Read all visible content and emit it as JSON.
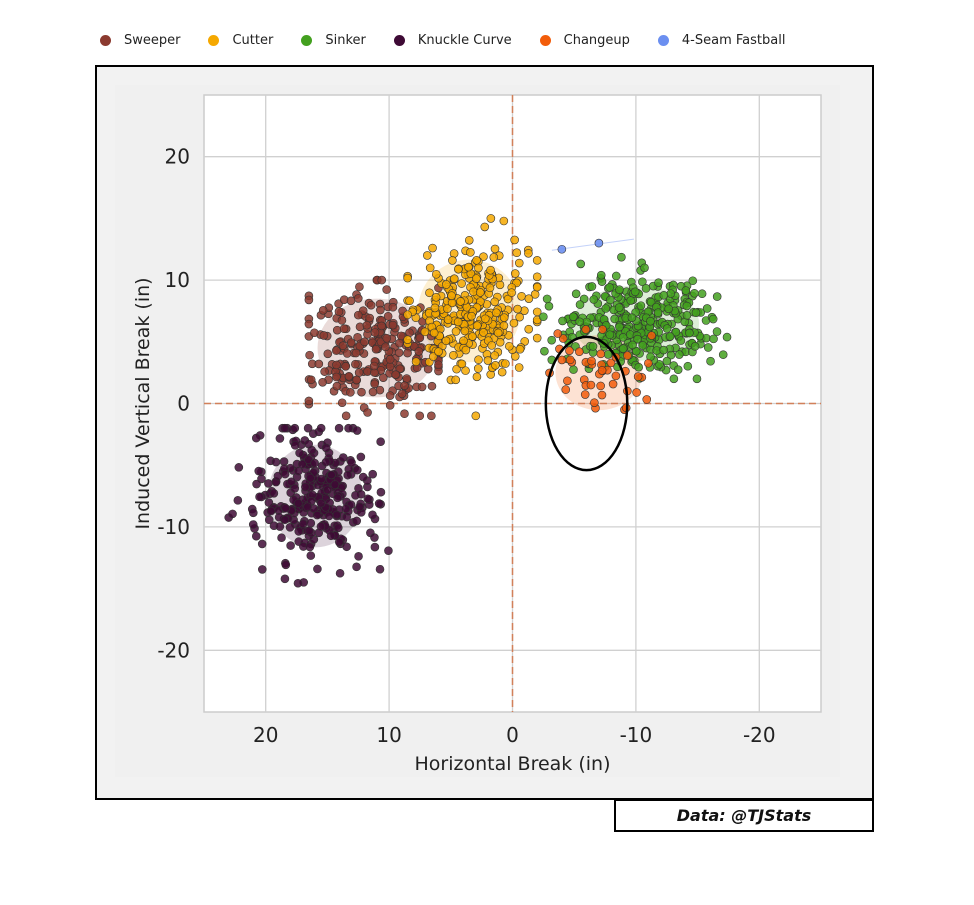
{
  "legend": [
    {
      "label": "Sweeper",
      "color": "#8b3a2f"
    },
    {
      "label": "Cutter",
      "color": "#f5a800"
    },
    {
      "label": "Sinker",
      "color": "#43a01f"
    },
    {
      "label": "Knuckle Curve",
      "color": "#3e0a35"
    },
    {
      "label": "Changeup",
      "color": "#f25c0a"
    },
    {
      "label": "4-Seam Fastball",
      "color": "#6b8ff0"
    }
  ],
  "credit": "Data: @TJStats",
  "chart_data": {
    "type": "scatter",
    "xlabel": "Horizontal Break (in)",
    "ylabel": "Induced Vertical Break (in)",
    "xlim": [
      25,
      -25
    ],
    "ylim": [
      -25,
      25
    ],
    "xticks": [
      20,
      10,
      0,
      -10,
      -20
    ],
    "yticks": [
      -20,
      -10,
      0,
      10,
      20
    ],
    "grid": true,
    "zero_lines": true,
    "series": [
      {
        "name": "Sweeper",
        "color": "#8b3a2f",
        "center": [
          11,
          4.5
        ],
        "spread": [
          3.0,
          2.5
        ],
        "range_x": [
          16.5,
          6
        ],
        "range_y": [
          -1,
          10
        ],
        "n": 260
      },
      {
        "name": "Cutter",
        "color": "#f5a800",
        "center": [
          3.5,
          7.5
        ],
        "spread": [
          2.6,
          2.6
        ],
        "range_x": [
          8.5,
          -2
        ],
        "range_y": [
          -1,
          15
        ],
        "n": 320
      },
      {
        "name": "Sinker",
        "color": "#43a01f",
        "center": [
          -10,
          6.5
        ],
        "spread": [
          3.2,
          1.9
        ],
        "range_x": [
          -2.5,
          -20
        ],
        "range_y": [
          2,
          14
        ],
        "n": 340
      },
      {
        "name": "Knuckle Curve",
        "color": "#3e0a35",
        "center": [
          16,
          -7.5
        ],
        "spread": [
          2.4,
          2.6
        ],
        "range_x": [
          23,
          10
        ],
        "range_y": [
          -15,
          -2
        ],
        "n": 300
      },
      {
        "name": "Changeup",
        "color": "#f25c0a",
        "center": [
          -7,
          2.5
        ],
        "spread": [
          2.2,
          1.9
        ],
        "range_x": [
          -3,
          -12.5
        ],
        "range_y": [
          -0.5,
          6
        ],
        "n": 45
      },
      {
        "name": "4-Seam Fastball",
        "color": "#6b8ff0",
        "points": [
          [
            -4,
            12.5
          ],
          [
            -7,
            13
          ]
        ]
      }
    ],
    "strike_zone_oval": {
      "center": [
        -6,
        0
      ],
      "half_width": 3.3,
      "half_height": 5.4
    }
  }
}
